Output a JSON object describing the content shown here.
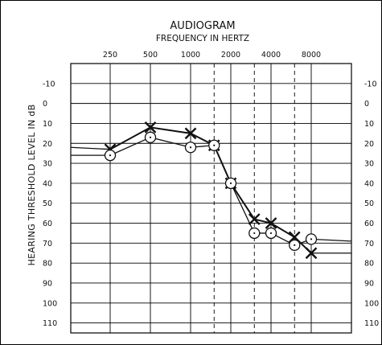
{
  "chart_data": {
    "type": "line",
    "title": "AUDIOGRAM",
    "subtitle": "FREQUENCY IN HERTZ",
    "ylabel": "HEARING THRESHOLD LEVEL IN dB",
    "x_major_ticks": [
      "250",
      "500",
      "1000",
      "2000",
      "4000",
      "8000"
    ],
    "x_minor_ticks": [
      "1500",
      "3000",
      "6000"
    ],
    "y_ticks": [
      "-10",
      "0",
      "10",
      "20",
      "30",
      "40",
      "50",
      "60",
      "70",
      "80",
      "90",
      "100",
      "110"
    ],
    "ylim": [
      -20,
      115
    ],
    "y_inverted": true,
    "x_scale": "log",
    "grid": true,
    "series": [
      {
        "marker": "x",
        "color": "#111111",
        "points": [
          {
            "x": 250,
            "y": 23
          },
          {
            "x": 500,
            "y": 12
          },
          {
            "x": 1000,
            "y": 15
          },
          {
            "x": 1500,
            "y": 21
          },
          {
            "x": 2000,
            "y": 40
          },
          {
            "x": 3000,
            "y": 58
          },
          {
            "x": 4000,
            "y": 60
          },
          {
            "x": 6000,
            "y": 67
          },
          {
            "x": 8000,
            "y": 75
          }
        ],
        "left_extension_y": 22,
        "right_extension_y": 75
      },
      {
        "marker": "o",
        "color": "#111111",
        "points": [
          {
            "x": 250,
            "y": 26
          },
          {
            "x": 500,
            "y": 17
          },
          {
            "x": 1000,
            "y": 22
          },
          {
            "x": 1500,
            "y": 21
          },
          {
            "x": 2000,
            "y": 40
          },
          {
            "x": 3000,
            "y": 65
          },
          {
            "x": 4000,
            "y": 65
          },
          {
            "x": 6000,
            "y": 71
          },
          {
            "x": 8000,
            "y": 68
          }
        ],
        "left_extension_y": 26,
        "right_extension_y": 69
      }
    ]
  }
}
